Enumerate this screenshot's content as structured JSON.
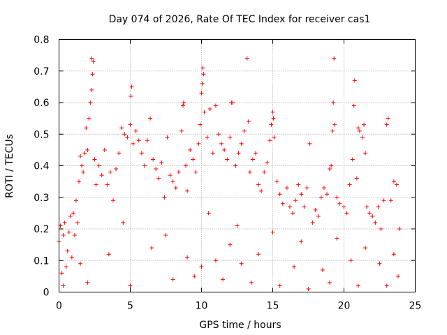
{
  "chart_data": {
    "type": "scatter",
    "title": "Day 074 of 2026, Rate Of TEC Index for receiver cas1",
    "xlabel": "GPS time / hours",
    "ylabel": "ROTI / TECUs",
    "xlim": [
      0,
      25
    ],
    "ylim": [
      0,
      0.8
    ],
    "x_ticks": [
      "0",
      "5",
      "10",
      "15",
      "20",
      "25"
    ],
    "y_ticks": [
      "0",
      "0.1",
      "0.2",
      "0.3",
      "0.4",
      "0.5",
      "0.6",
      "0.7",
      "0.8"
    ],
    "grid": true,
    "marker": "+",
    "series": [
      {
        "name": "ROTI",
        "color": "#ff0000",
        "points": [
          [
            0.0,
            0.16
          ],
          [
            0.1,
            0.21
          ],
          [
            0.2,
            0.06
          ],
          [
            0.3,
            0.18
          ],
          [
            0.4,
            0.22
          ],
          [
            0.5,
            0.08
          ],
          [
            0.6,
            0.13
          ],
          [
            0.7,
            0.19
          ],
          [
            0.8,
            0.24
          ],
          [
            0.9,
            0.11
          ],
          [
            1.0,
            0.25
          ],
          [
            1.1,
            0.18
          ],
          [
            1.2,
            0.29
          ],
          [
            1.3,
            0.22
          ],
          [
            1.4,
            0.35
          ],
          [
            1.5,
            0.43
          ],
          [
            1.6,
            0.4
          ],
          [
            1.7,
            0.38
          ],
          [
            1.8,
            0.44
          ],
          [
            1.9,
            0.52
          ],
          [
            2.0,
            0.45
          ],
          [
            2.1,
            0.55
          ],
          [
            2.2,
            0.6
          ],
          [
            2.3,
            0.64
          ],
          [
            2.4,
            0.73
          ],
          [
            2.35,
            0.69
          ],
          [
            2.3,
            0.74
          ],
          [
            2.5,
            0.42
          ],
          [
            2.6,
            0.34
          ],
          [
            2.8,
            0.4
          ],
          [
            3.0,
            0.37
          ],
          [
            3.2,
            0.45
          ],
          [
            3.4,
            0.34
          ],
          [
            3.6,
            0.38
          ],
          [
            3.8,
            0.29
          ],
          [
            4.0,
            0.39
          ],
          [
            4.2,
            0.44
          ],
          [
            4.4,
            0.52
          ],
          [
            4.6,
            0.5
          ],
          [
            4.8,
            0.49
          ],
          [
            5.0,
            0.53
          ],
          [
            5.05,
            0.62
          ],
          [
            5.1,
            0.65
          ],
          [
            5.2,
            0.47
          ],
          [
            5.4,
            0.51
          ],
          [
            5.6,
            0.48
          ],
          [
            5.8,
            0.44
          ],
          [
            6.0,
            0.4
          ],
          [
            6.2,
            0.48
          ],
          [
            6.4,
            0.55
          ],
          [
            6.6,
            0.42
          ],
          [
            6.8,
            0.39
          ],
          [
            7.0,
            0.36
          ],
          [
            7.2,
            0.41
          ],
          [
            7.4,
            0.3
          ],
          [
            7.6,
            0.49
          ],
          [
            7.8,
            0.37
          ],
          [
            8.0,
            0.35
          ],
          [
            8.2,
            0.33
          ],
          [
            8.4,
            0.38
          ],
          [
            8.6,
            0.51
          ],
          [
            8.7,
            0.59
          ],
          [
            8.75,
            0.6
          ],
          [
            8.9,
            0.4
          ],
          [
            9.0,
            0.32
          ],
          [
            9.2,
            0.45
          ],
          [
            9.4,
            0.42
          ],
          [
            9.6,
            0.38
          ],
          [
            9.8,
            0.47
          ],
          [
            9.9,
            0.53
          ],
          [
            10.0,
            0.63
          ],
          [
            10.05,
            0.66
          ],
          [
            10.1,
            0.71
          ],
          [
            10.15,
            0.69
          ],
          [
            10.2,
            0.57
          ],
          [
            10.4,
            0.49
          ],
          [
            10.6,
            0.58
          ],
          [
            10.8,
            0.44
          ],
          [
            11.0,
            0.59
          ],
          [
            11.2,
            0.5
          ],
          [
            11.4,
            0.47
          ],
          [
            11.6,
            0.45
          ],
          [
            11.8,
            0.42
          ],
          [
            12.0,
            0.49
          ],
          [
            12.1,
            0.6
          ],
          [
            12.2,
            0.6
          ],
          [
            12.4,
            0.4
          ],
          [
            12.6,
            0.44
          ],
          [
            12.8,
            0.47
          ],
          [
            13.0,
            0.51
          ],
          [
            13.2,
            0.74
          ],
          [
            13.3,
            0.54
          ],
          [
            13.4,
            0.38
          ],
          [
            13.6,
            0.42
          ],
          [
            13.8,
            0.44
          ],
          [
            14.0,
            0.34
          ],
          [
            14.2,
            0.32
          ],
          [
            14.4,
            0.38
          ],
          [
            14.6,
            0.41
          ],
          [
            14.8,
            0.48
          ],
          [
            14.9,
            0.53
          ],
          [
            15.0,
            0.57
          ],
          [
            15.05,
            0.55
          ],
          [
            15.1,
            0.49
          ],
          [
            15.3,
            0.35
          ],
          [
            15.5,
            0.31
          ],
          [
            15.7,
            0.28
          ],
          [
            16.0,
            0.33
          ],
          [
            16.2,
            0.27
          ],
          [
            16.4,
            0.25
          ],
          [
            16.6,
            0.29
          ],
          [
            16.8,
            0.34
          ],
          [
            17.0,
            0.31
          ],
          [
            17.2,
            0.27
          ],
          [
            17.4,
            0.33
          ],
          [
            17.6,
            0.47
          ],
          [
            17.8,
            0.22
          ],
          [
            18.0,
            0.26
          ],
          [
            18.2,
            0.24
          ],
          [
            18.4,
            0.3
          ],
          [
            18.6,
            0.33
          ],
          [
            18.8,
            0.31
          ],
          [
            19.0,
            0.39
          ],
          [
            19.1,
            0.4
          ],
          [
            19.2,
            0.51
          ],
          [
            19.25,
            0.6
          ],
          [
            19.3,
            0.74
          ],
          [
            19.35,
            0.53
          ],
          [
            19.5,
            0.3
          ],
          [
            19.7,
            0.28
          ],
          [
            20.0,
            0.27
          ],
          [
            20.2,
            0.25
          ],
          [
            20.4,
            0.34
          ],
          [
            20.6,
            0.42
          ],
          [
            20.7,
            0.59
          ],
          [
            20.75,
            0.67
          ],
          [
            20.9,
            0.36
          ],
          [
            21.0,
            0.52
          ],
          [
            21.1,
            0.51
          ],
          [
            21.3,
            0.49
          ],
          [
            21.4,
            0.53
          ],
          [
            21.5,
            0.44
          ],
          [
            21.6,
            0.27
          ],
          [
            21.8,
            0.25
          ],
          [
            22.0,
            0.24
          ],
          [
            22.2,
            0.22
          ],
          [
            22.4,
            0.27
          ],
          [
            22.6,
            0.2
          ],
          [
            22.8,
            0.29
          ],
          [
            23.0,
            0.53
          ],
          [
            23.1,
            0.55
          ],
          [
            23.3,
            0.29
          ],
          [
            23.5,
            0.35
          ],
          [
            23.7,
            0.34
          ],
          [
            23.9,
            0.2
          ],
          [
            0.3,
            0.02
          ],
          [
            2.0,
            0.03
          ],
          [
            5.0,
            0.02
          ],
          [
            8.0,
            0.04
          ],
          [
            9.5,
            0.05
          ],
          [
            11.5,
            0.04
          ],
          [
            13.5,
            0.03
          ],
          [
            15.5,
            0.02
          ],
          [
            17.5,
            0.01
          ],
          [
            19.0,
            0.03
          ],
          [
            21.0,
            0.02
          ],
          [
            23.0,
            0.02
          ],
          [
            1.5,
            0.09
          ],
          [
            3.5,
            0.12
          ],
          [
            6.5,
            0.14
          ],
          [
            9.0,
            0.11
          ],
          [
            12.0,
            0.15
          ],
          [
            14.0,
            0.12
          ],
          [
            16.5,
            0.08
          ],
          [
            18.5,
            0.07
          ],
          [
            20.5,
            0.1
          ],
          [
            22.5,
            0.09
          ],
          [
            23.8,
            0.05
          ],
          [
            4.5,
            0.22
          ],
          [
            7.5,
            0.18
          ],
          [
            10.5,
            0.25
          ],
          [
            12.5,
            0.21
          ],
          [
            15.0,
            0.19
          ],
          [
            17.0,
            0.16
          ],
          [
            19.5,
            0.17
          ],
          [
            21.5,
            0.14
          ],
          [
            23.5,
            0.12
          ],
          [
            10.0,
            0.08
          ],
          [
            11.0,
            0.1
          ],
          [
            12.8,
            0.09
          ]
        ]
      }
    ]
  }
}
